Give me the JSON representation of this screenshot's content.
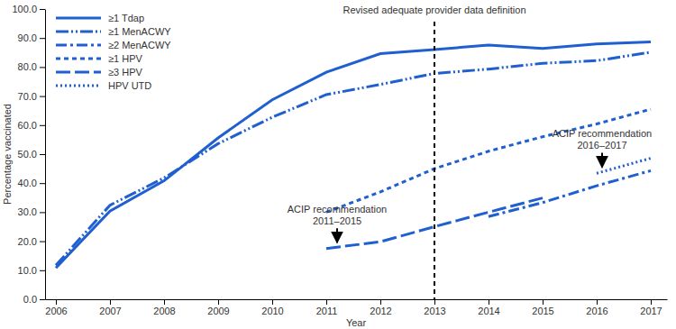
{
  "chart_data": {
    "type": "line",
    "x_label": "Year",
    "y_label": "Percentage vaccinated",
    "x": [
      2006,
      2007,
      2008,
      2009,
      2010,
      2011,
      2012,
      2013,
      2014,
      2015,
      2016,
      2017
    ],
    "xlim": [
      2005.8,
      2017.3
    ],
    "xticks": [
      2006,
      2007,
      2008,
      2009,
      2010,
      2011,
      2012,
      2013,
      2014,
      2015,
      2016,
      2017
    ],
    "ylim": [
      0,
      100
    ],
    "yticks": [
      {
        "value": 0,
        "label": "0.0"
      },
      {
        "value": 10,
        "label": "10.0"
      },
      {
        "value": 20,
        "label": "20.0"
      },
      {
        "value": 30,
        "label": "30.0"
      },
      {
        "value": 40,
        "label": "40.0"
      },
      {
        "value": 50,
        "label": "50.0"
      },
      {
        "value": 60,
        "label": "60.0"
      },
      {
        "value": 70,
        "label": "70.0"
      },
      {
        "value": 80,
        "label": "80.0"
      },
      {
        "value": 90,
        "label": "90.0"
      },
      {
        "value": 100,
        "label": "100.0"
      }
    ],
    "grid": false,
    "legend": "upper left",
    "series": [
      {
        "name": "≥1 Tdap",
        "color": "#1f5fd0",
        "line_style": "solid",
        "values": [
          10.8,
          30.4,
          40.8,
          55.6,
          68.7,
          78.2,
          84.6,
          86.0,
          87.6,
          86.4,
          88.0,
          88.7
        ]
      },
      {
        "name": "≥1 MenACWY",
        "color": "#1f5fd0",
        "line_style": "dashdotdot",
        "values": [
          11.7,
          32.4,
          41.8,
          53.6,
          62.7,
          70.5,
          74.0,
          77.8,
          79.3,
          81.3,
          82.2,
          85.1
        ]
      },
      {
        "name": "≥2 MenACWY",
        "color": "#1f5fd0",
        "line_style": "dashdot",
        "values": [
          null,
          null,
          null,
          null,
          null,
          null,
          null,
          null,
          28.5,
          33.3,
          39.1,
          44.3
        ]
      },
      {
        "name": "≥1 HPV",
        "color": "#1f5fd0",
        "line_style": "dash",
        "values": [
          null,
          null,
          null,
          null,
          null,
          30.0,
          37.0,
          45.0,
          51.0,
          56.0,
          60.4,
          65.5
        ]
      },
      {
        "name": "≥3 HPV",
        "color": "#1f5fd0",
        "line_style": "longdash",
        "values": [
          null,
          null,
          null,
          null,
          null,
          17.5,
          19.8,
          25.0,
          30.0,
          34.9,
          null,
          null
        ]
      },
      {
        "name": "HPV UTD",
        "color": "#1f5fd0",
        "line_style": "dot",
        "values": [
          null,
          null,
          null,
          null,
          null,
          null,
          null,
          null,
          null,
          null,
          43.4,
          48.6
        ]
      }
    ],
    "annotations": [
      {
        "text": [
          "Revised adequate provider data definition"
        ],
        "x": 2013,
        "type": "vline"
      },
      {
        "text": [
          "ACIP recommendation",
          "2011–2015"
        ],
        "x": 2011.2,
        "y": 19.5,
        "type": "arrow"
      },
      {
        "text": [
          "ACIP recommendation",
          "2016–2017"
        ],
        "x": 2016.1,
        "y": 45.5,
        "type": "arrow"
      }
    ]
  }
}
